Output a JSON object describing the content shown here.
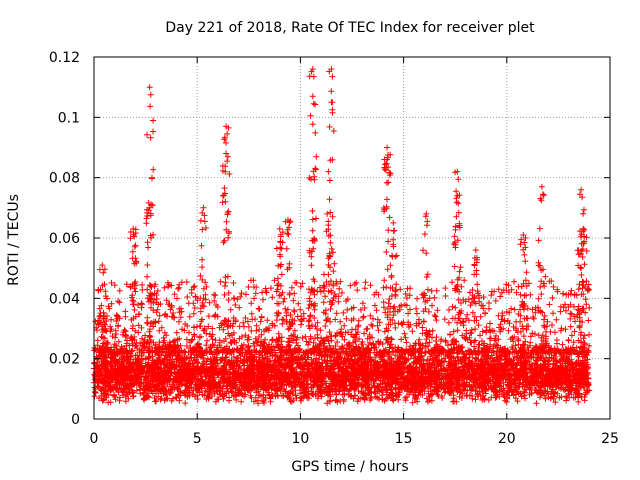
{
  "chart_data": {
    "type": "scatter",
    "title": "Day 221 of 2018, Rate Of TEC Index for receiver plet",
    "xlabel": "GPS time / hours",
    "ylabel": "ROTI / TECUs",
    "xlim": [
      0,
      25
    ],
    "ylim": [
      0,
      0.12
    ],
    "x_ticks": [
      0,
      5,
      10,
      15,
      20,
      25
    ],
    "y_ticks": [
      0,
      0.02,
      0.04,
      0.06,
      0.08,
      0.1,
      0.12
    ],
    "x_tick_labels": [
      "0",
      "5",
      "10",
      "15",
      "20",
      "25"
    ],
    "y_tick_labels": [
      "0",
      "0.02",
      "0.04",
      "0.06",
      "0.08",
      "0.1",
      "0.12"
    ],
    "grid": true,
    "marker": "+",
    "color": "#ff0000",
    "data_range_hours": [
      0,
      24
    ],
    "baseline_range": [
      0.005,
      0.022
    ],
    "spikes": [
      {
        "x": 0.4,
        "ymax": 0.051
      },
      {
        "x": 1.9,
        "ymax": 0.063
      },
      {
        "x": 2.7,
        "ymax": 0.11
      },
      {
        "x": 2.7,
        "ymax": 0.07
      },
      {
        "x": 5.3,
        "ymax": 0.07
      },
      {
        "x": 6.4,
        "ymax": 0.097
      },
      {
        "x": 6.4,
        "ymax": 0.088
      },
      {
        "x": 9.0,
        "ymax": 0.063
      },
      {
        "x": 9.4,
        "ymax": 0.066
      },
      {
        "x": 10.6,
        "ymax": 0.116
      },
      {
        "x": 10.6,
        "ymax": 0.107
      },
      {
        "x": 11.5,
        "ymax": 0.116
      },
      {
        "x": 11.5,
        "ymax": 0.105
      },
      {
        "x": 11.3,
        "ymax": 0.068
      },
      {
        "x": 14.2,
        "ymax": 0.09
      },
      {
        "x": 14.2,
        "ymax": 0.086
      },
      {
        "x": 14.5,
        "ymax": 0.065
      },
      {
        "x": 16.1,
        "ymax": 0.068
      },
      {
        "x": 17.6,
        "ymax": 0.082
      },
      {
        "x": 17.6,
        "ymax": 0.074
      },
      {
        "x": 18.5,
        "ymax": 0.056
      },
      {
        "x": 20.8,
        "ymax": 0.061
      },
      {
        "x": 21.7,
        "ymax": 0.077
      },
      {
        "x": 23.6,
        "ymax": 0.076
      },
      {
        "x": 23.7,
        "ymax": 0.063
      }
    ]
  }
}
